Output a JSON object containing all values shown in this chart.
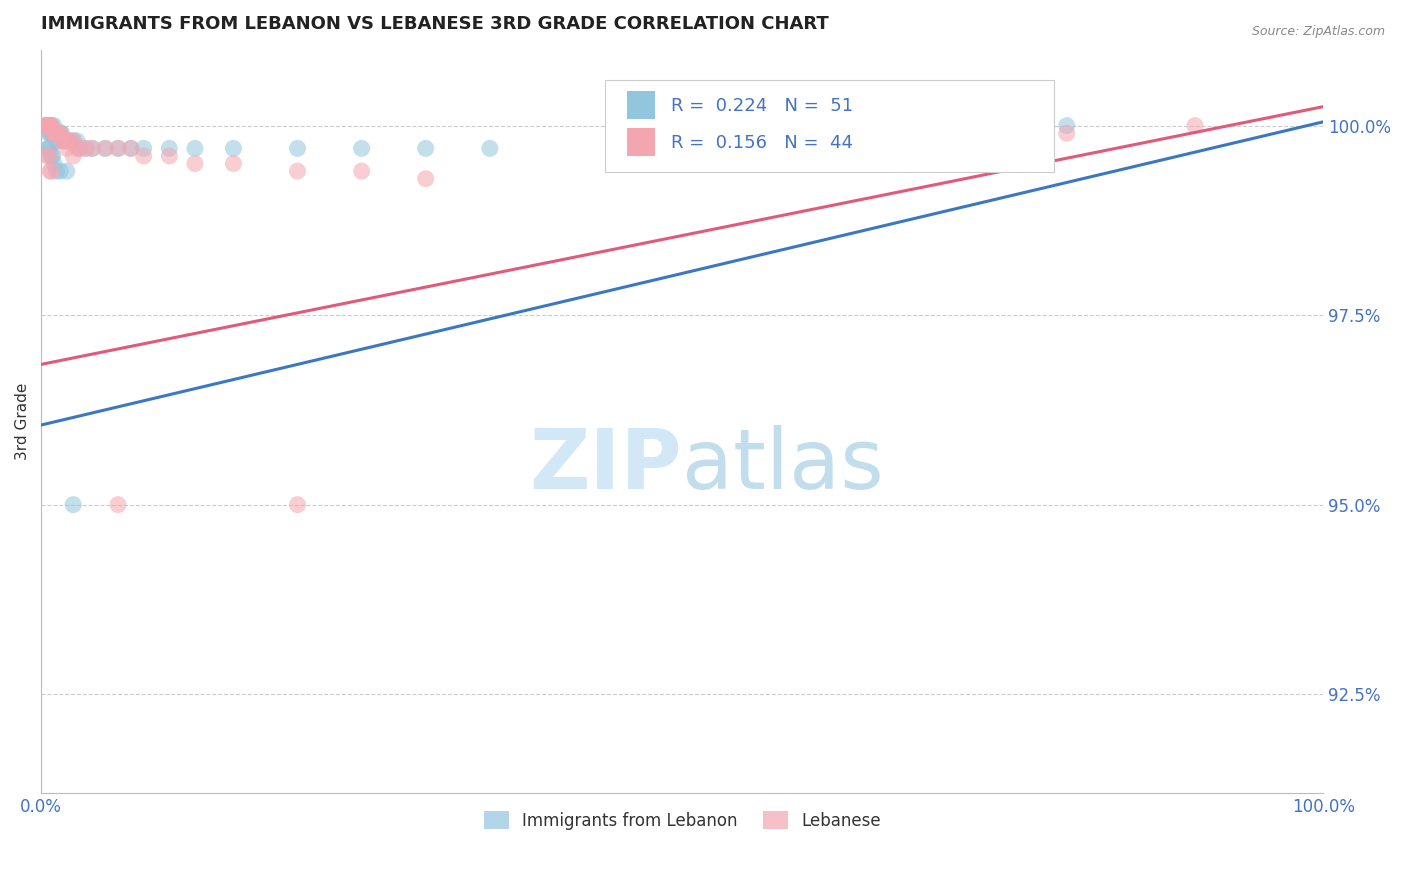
{
  "title": "IMMIGRANTS FROM LEBANON VS LEBANESE 3RD GRADE CORRELATION CHART",
  "source_text": "Source: ZipAtlas.com",
  "ylabel": "3rd Grade",
  "xlim": [
    0.0,
    1.0
  ],
  "ylim": [
    0.912,
    1.01
  ],
  "yticks": [
    0.925,
    0.95,
    0.975,
    1.0
  ],
  "ytick_labels": [
    "92.5%",
    "95.0%",
    "97.5%",
    "100.0%"
  ],
  "xtick_labels": [
    "0.0%",
    "100.0%"
  ],
  "xticks": [
    0.0,
    1.0
  ],
  "legend_labels": [
    "Immigrants from Lebanon",
    "Lebanese"
  ],
  "blue_R": "0.224",
  "blue_N": "51",
  "pink_R": "0.156",
  "pink_N": "44",
  "blue_color": "#92c5de",
  "pink_color": "#f4a6b0",
  "blue_line_color": "#3b78c3",
  "pink_line_color": "#e05a7a",
  "watermark_zip": "ZIP",
  "watermark_atlas": "atlas",
  "background_color": "#ffffff",
  "grid_color": "#cccccc",
  "blue_line_x": [
    0.0,
    1.0
  ],
  "blue_line_y": [
    0.9605,
    1.0005
  ],
  "pink_line_x": [
    0.0,
    1.0
  ],
  "pink_line_y": [
    0.9685,
    1.0025
  ],
  "blue_x": [
    0.003,
    0.004,
    0.005,
    0.006,
    0.006,
    0.007,
    0.007,
    0.008,
    0.008,
    0.009,
    0.01,
    0.01,
    0.011,
    0.012,
    0.012,
    0.013,
    0.014,
    0.015,
    0.016,
    0.017,
    0.018,
    0.02,
    0.022,
    0.025,
    0.028,
    0.03,
    0.035,
    0.04,
    0.05,
    0.06,
    0.07,
    0.08,
    0.1,
    0.12,
    0.15,
    0.2,
    0.25,
    0.3,
    0.35,
    0.005,
    0.006,
    0.007,
    0.008,
    0.009,
    0.01,
    0.012,
    0.015,
    0.02,
    0.025,
    0.7,
    0.8
  ],
  "blue_y": [
    1.0,
    1.0,
    1.0,
    1.0,
    0.999,
    1.0,
    0.999,
    1.0,
    0.999,
    0.999,
    1.0,
    0.999,
    0.999,
    0.999,
    0.998,
    0.999,
    0.999,
    0.999,
    0.999,
    0.998,
    0.998,
    0.998,
    0.998,
    0.998,
    0.998,
    0.997,
    0.997,
    0.997,
    0.997,
    0.997,
    0.997,
    0.997,
    0.997,
    0.997,
    0.997,
    0.997,
    0.997,
    0.997,
    0.997,
    0.997,
    0.997,
    0.997,
    0.996,
    0.996,
    0.995,
    0.994,
    0.994,
    0.994,
    0.95,
    1.0,
    1.0
  ],
  "pink_x": [
    0.003,
    0.004,
    0.005,
    0.006,
    0.007,
    0.007,
    0.008,
    0.009,
    0.01,
    0.011,
    0.012,
    0.013,
    0.014,
    0.015,
    0.016,
    0.018,
    0.02,
    0.022,
    0.025,
    0.028,
    0.03,
    0.035,
    0.04,
    0.05,
    0.06,
    0.07,
    0.08,
    0.1,
    0.12,
    0.15,
    0.2,
    0.25,
    0.3,
    0.02,
    0.025,
    0.005,
    0.006,
    0.007,
    0.008,
    0.06,
    0.2,
    0.7,
    0.8,
    0.9
  ],
  "pink_y": [
    1.0,
    1.0,
    1.0,
    1.0,
    1.0,
    1.0,
    1.0,
    0.999,
    0.999,
    0.999,
    0.999,
    0.999,
    0.999,
    0.999,
    0.998,
    0.998,
    0.998,
    0.998,
    0.998,
    0.997,
    0.997,
    0.997,
    0.997,
    0.997,
    0.997,
    0.997,
    0.996,
    0.996,
    0.995,
    0.995,
    0.994,
    0.994,
    0.993,
    0.997,
    0.996,
    0.996,
    0.996,
    0.994,
    0.994,
    0.95,
    0.95,
    0.998,
    0.999,
    1.0
  ]
}
